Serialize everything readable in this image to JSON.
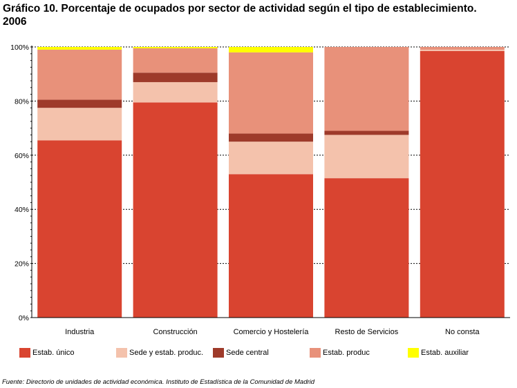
{
  "title_line1": "Gráfico 10. Porcentaje de ocupados por sector de actividad según el tipo de establecimiento.",
  "title_line2": "2006",
  "source": "Fuente: Directorio de unidades de actividad económica. Instituto de Estadística de la Comunidad de Madrid",
  "chart_data": {
    "type": "bar",
    "stacked": true,
    "categories": [
      "Industria",
      "Construcción",
      "Comercio y Hostelería",
      "Resto de Servicios",
      "No consta"
    ],
    "series": [
      {
        "name": "Estab. único",
        "color": "#d94430",
        "values": [
          65.5,
          79.5,
          53.0,
          51.5,
          98.5
        ]
      },
      {
        "name": "Sede y estab. produc.",
        "color": "#f4c2ac",
        "values": [
          12.0,
          7.5,
          12.0,
          16.0,
          0.5
        ]
      },
      {
        "name": "Sede central",
        "color": "#9e3a2a",
        "values": [
          3.0,
          3.5,
          3.0,
          1.5,
          0.0
        ]
      },
      {
        "name": "Estab. produc",
        "color": "#e8917a",
        "values": [
          18.5,
          9.0,
          30.0,
          31.0,
          1.0
        ]
      },
      {
        "name": "Estab. auxiliar",
        "color": "#ffff00",
        "values": [
          1.0,
          0.5,
          2.0,
          0.0,
          0.0
        ]
      }
    ],
    "ylim": [
      0,
      100
    ],
    "yticks": [
      "0%",
      "20%",
      "40%",
      "60%",
      "80%",
      "100%"
    ],
    "grid": true,
    "legend_position": "bottom"
  }
}
